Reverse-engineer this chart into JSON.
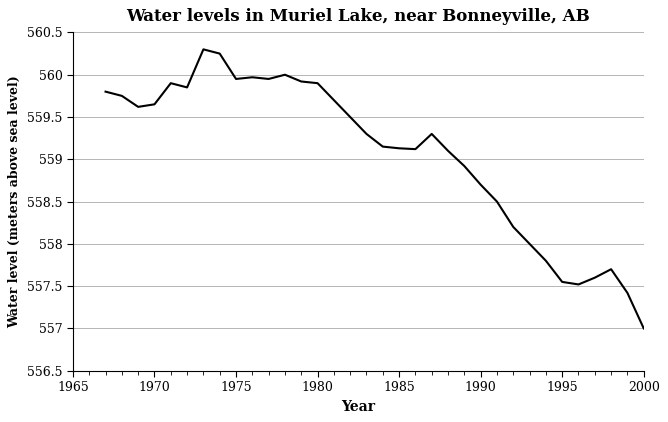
{
  "title": "Water levels in Muriel Lake, near Bonneyville, AB",
  "xlabel": "Year",
  "ylabel": "Water level (meters above sea level)",
  "xlim": [
    1965,
    2000
  ],
  "ylim": [
    556.5,
    560.5
  ],
  "ytick_values": [
    556.5,
    557.0,
    557.5,
    558.0,
    558.5,
    559.0,
    559.5,
    560.0,
    560.5
  ],
  "ytick_labels": [
    "556.5",
    "557",
    "557.5",
    "558",
    "558.5",
    "559",
    "559.5",
    "560",
    "560.5"
  ],
  "xticks": [
    1965,
    1970,
    1975,
    1980,
    1985,
    1990,
    1995,
    2000
  ],
  "line_color": "#000000",
  "line_width": 1.5,
  "background_color": "#ffffff",
  "years": [
    1967,
    1968,
    1969,
    1970,
    1971,
    1972,
    1973,
    1974,
    1975,
    1976,
    1977,
    1978,
    1979,
    1980,
    1981,
    1982,
    1983,
    1984,
    1985,
    1986,
    1987,
    1988,
    1989,
    1990,
    1991,
    1992,
    1993,
    1994,
    1995,
    1996,
    1997,
    1998,
    1999,
    2000
  ],
  "levels": [
    559.8,
    559.75,
    559.62,
    559.65,
    559.9,
    559.85,
    560.3,
    560.25,
    559.95,
    559.97,
    559.95,
    560.0,
    559.92,
    559.9,
    559.7,
    559.5,
    559.3,
    559.15,
    559.13,
    559.12,
    559.3,
    559.1,
    558.92,
    558.7,
    558.5,
    558.2,
    558.0,
    557.8,
    557.55,
    557.52,
    557.6,
    557.7,
    557.42,
    557.0
  ]
}
